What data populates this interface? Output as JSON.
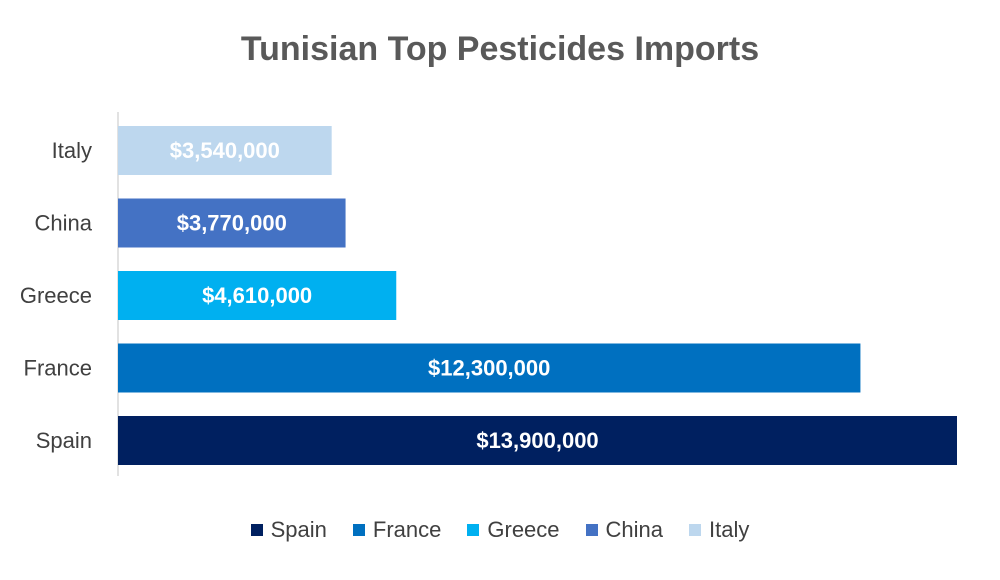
{
  "chart_data": {
    "type": "bar",
    "orientation": "horizontal",
    "title": "Tunisian Top Pesticides Imports",
    "categories": [
      "Italy",
      "China",
      "Greece",
      "France",
      "Spain"
    ],
    "values": [
      3540000,
      3770000,
      4610000,
      12300000,
      13900000
    ],
    "data_labels": [
      "$3,540,000",
      "$3,770,000",
      "$4,610,000",
      "$12,300,000",
      "$13,900,000"
    ],
    "colors": [
      "#BDD7EE",
      "#4472C4",
      "#00B0F0",
      "#0070C0",
      "#002060"
    ],
    "xlim": [
      0,
      13900000
    ],
    "grid": false,
    "legend_position": "bottom",
    "legend": [
      {
        "name": "Spain",
        "color": "#002060"
      },
      {
        "name": "France",
        "color": "#0070C0"
      },
      {
        "name": "Greece",
        "color": "#00B0F0"
      },
      {
        "name": "China",
        "color": "#4472C4"
      },
      {
        "name": "Italy",
        "color": "#BDD7EE"
      }
    ]
  }
}
